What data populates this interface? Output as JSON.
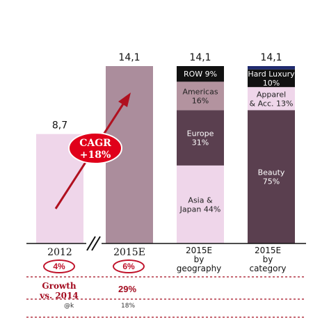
{
  "chart_data": {
    "type": "bar",
    "categories": [
      "2012",
      "2015E",
      "2015E by geography",
      "2015E by category"
    ],
    "totals": [
      8.7,
      14.1,
      14.1,
      14.1
    ],
    "total_labels": [
      "8,7",
      "14,1",
      "14,1",
      "14,1"
    ],
    "ylim": [
      0,
      16
    ],
    "stacks": {
      "geography": [
        {
          "name": "Asia &\nJapan 44%",
          "value": 6.2,
          "color": "#efd6ea",
          "text_color": "#222222"
        },
        {
          "name": "Europe\n31%",
          "value": 4.4,
          "color": "#5a3f4f",
          "text_color": "#ffffff"
        },
        {
          "name": "Americas\n16%",
          "value": 2.26,
          "color": "#b3939f",
          "text_color": "#222222"
        },
        {
          "name": "ROW 9%",
          "value": 1.24,
          "color": "#111111",
          "text_color": "#ffffff"
        }
      ],
      "category": [
        {
          "name": "Beauty\n75%",
          "value": 10.6,
          "color": "#5a3f4f",
          "text_color": "#ffffff"
        },
        {
          "name": "Apparel\n& Acc. 13%",
          "value": 1.83,
          "color": "#efd6ea",
          "text_color": "#222222"
        },
        {
          "name": "Hard Luxury\n10%",
          "value": 1.41,
          "color": "#111111",
          "text_color": "#ffffff"
        },
        {
          "name": "",
          "value": 0.26,
          "color": "#1f2a6e",
          "text_color": "#ffffff"
        }
      ]
    },
    "colors": {
      "bar_2012": "#efd6ea",
      "bar_2015": "#ab8d9c",
      "arrow": "#b0101f",
      "badge": "#e0001a"
    },
    "cagr_label": [
      "CAGR",
      "+18%"
    ],
    "x_labels": [
      {
        "main": "2012",
        "sub": ""
      },
      {
        "main": "2015E",
        "sub": ""
      },
      {
        "main": "2015E",
        "sub": "by\ngeography"
      },
      {
        "main": "2015E",
        "sub": "by\ncategory"
      }
    ],
    "growth_ovals": [
      "4%",
      "6%"
    ]
  },
  "growth_row": {
    "label_line1": "Growth",
    "label_line2": "vs. 2014",
    "value": "29%"
  },
  "notes_row": {
    "left": "@k",
    "value": "18%"
  }
}
